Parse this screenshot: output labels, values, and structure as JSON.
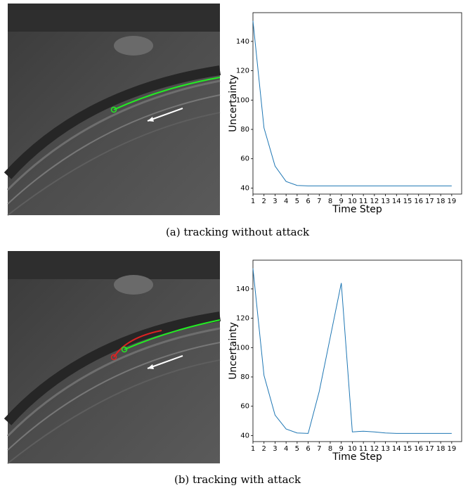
{
  "chart_data": [
    {
      "type": "line",
      "caption": "(a) tracking without attack",
      "xlabel": "Time Step",
      "ylabel": "Uncertainty",
      "color": "#1f77b4",
      "x": [
        1,
        2,
        3,
        4,
        5,
        6,
        7,
        8,
        9,
        10,
        11,
        12,
        13,
        14,
        15,
        16,
        17,
        18,
        19
      ],
      "values": [
        154,
        81,
        55,
        44.5,
        41.8,
        41.5,
        41.5,
        41.5,
        41.5,
        41.5,
        41.5,
        41.5,
        41.5,
        41.5,
        41.5,
        41.5,
        41.5,
        41.5,
        41.5
      ],
      "xlim": [
        1,
        19.9
      ],
      "xticks": [
        1,
        2,
        3,
        4,
        5,
        6,
        7,
        8,
        9,
        10,
        11,
        12,
        13,
        14,
        15,
        16,
        17,
        18,
        19
      ],
      "ylim": [
        35.9,
        159.6
      ],
      "yticks": [
        40,
        60,
        80,
        100,
        120,
        140
      ]
    },
    {
      "type": "line",
      "caption": "(b) tracking with attack",
      "xlabel": "Time Step",
      "ylabel": "Uncertainty",
      "color": "#1f77b4",
      "x": [
        1,
        2,
        3,
        4,
        5,
        6,
        7,
        8,
        9,
        10,
        11,
        12,
        13,
        14,
        15,
        16,
        17,
        18,
        19
      ],
      "values": [
        154,
        81,
        54,
        44.5,
        41.8,
        41.5,
        70,
        107,
        144,
        42.5,
        43,
        42.5,
        41.8,
        41.5,
        41.5,
        41.5,
        41.5,
        41.5,
        41.5
      ],
      "xlim": [
        1,
        19.9
      ],
      "xticks": [
        1,
        2,
        3,
        4,
        5,
        6,
        7,
        8,
        9,
        10,
        11,
        12,
        13,
        14,
        15,
        16,
        17,
        18,
        19
      ],
      "ylim": [
        35.9,
        159.6
      ],
      "yticks": [
        40,
        60,
        80,
        100,
        120,
        140
      ]
    }
  ]
}
